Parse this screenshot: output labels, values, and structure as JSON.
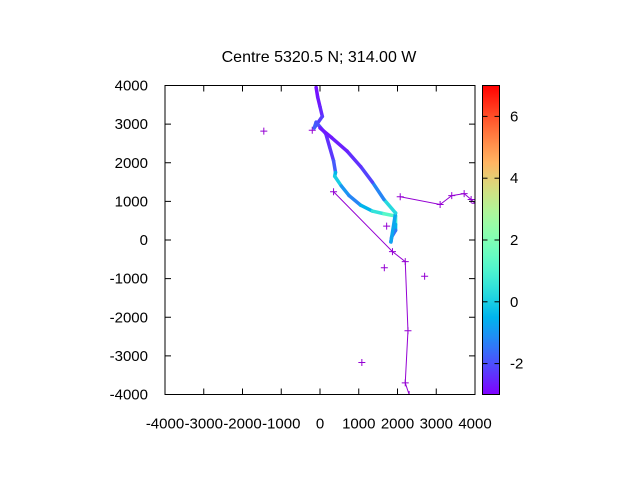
{
  "chart_data": {
    "type": "scatter",
    "title": "Centre 5320.5 N; 314.00  W",
    "xlabel": "",
    "ylabel": "",
    "xlim": [
      -4000,
      4000
    ],
    "ylim": [
      -4000,
      4000
    ],
    "grid": false,
    "x_ticks": [
      -4000,
      -3000,
      -2000,
      -1000,
      0,
      1000,
      2000,
      3000,
      4000
    ],
    "y_ticks": [
      -4000,
      -3000,
      -2000,
      -1000,
      0,
      1000,
      2000,
      3000,
      4000
    ],
    "colorbar": {
      "range": [
        -3,
        7
      ],
      "ticks": [
        -2,
        0,
        2,
        4,
        6
      ],
      "palette": "rainbow"
    },
    "track_color": "#9400D3",
    "series": [
      {
        "kind": "track-with-markers",
        "points": [
          [
            350,
            1250
          ],
          [
            1870,
            -300
          ],
          [
            2200,
            -560
          ],
          [
            2270,
            -2350
          ],
          [
            2200,
            -3700
          ],
          [
            2300,
            -4000
          ]
        ]
      },
      {
        "kind": "track-with-markers",
        "points": [
          [
            2070,
            1120
          ],
          [
            3100,
            920
          ],
          [
            3400,
            1150
          ],
          [
            3720,
            1200
          ],
          [
            3900,
            1050
          ],
          [
            4000,
            950
          ]
        ]
      },
      {
        "kind": "isolated-markers",
        "points": [
          [
            -1450,
            2820
          ],
          [
            -200,
            2840
          ],
          [
            1720,
            360
          ],
          [
            1660,
            -720
          ],
          [
            2700,
            -940
          ],
          [
            1080,
            -3170
          ]
        ]
      },
      {
        "kind": "colored-ship-track",
        "points": [
          [
            -100,
            3950,
            -2.8
          ],
          [
            -60,
            3700,
            -2.8
          ],
          [
            0,
            3450,
            -2.6
          ],
          [
            60,
            3200,
            -2.4
          ],
          [
            -150,
            2900,
            -2.0
          ],
          [
            -100,
            3050,
            -1.5
          ],
          [
            150,
            2750,
            -2.4
          ],
          [
            250,
            2400,
            -2.4
          ],
          [
            350,
            2050,
            -2.2
          ],
          [
            400,
            1750,
            -1.5
          ],
          [
            380,
            1650,
            0.5
          ],
          [
            550,
            1400,
            -0.5
          ],
          [
            750,
            1150,
            -1.5
          ],
          [
            1050,
            900,
            -1.0
          ],
          [
            1350,
            750,
            0.0
          ],
          [
            1650,
            680,
            1.0
          ],
          [
            1950,
            620,
            1.5
          ],
          [
            1950,
            400,
            0.0
          ],
          [
            1950,
            250,
            -1.0
          ],
          [
            1850,
            80,
            -2.0
          ],
          [
            1830,
            -50,
            -2.5
          ],
          [
            1950,
            700,
            1.0
          ],
          [
            1650,
            1050,
            -0.5
          ],
          [
            1350,
            1500,
            -2.0
          ],
          [
            1050,
            1900,
            -2.3
          ],
          [
            700,
            2300,
            -2.5
          ],
          [
            300,
            2650,
            -2.7
          ],
          [
            0,
            2900,
            -2.7
          ]
        ]
      }
    ]
  }
}
